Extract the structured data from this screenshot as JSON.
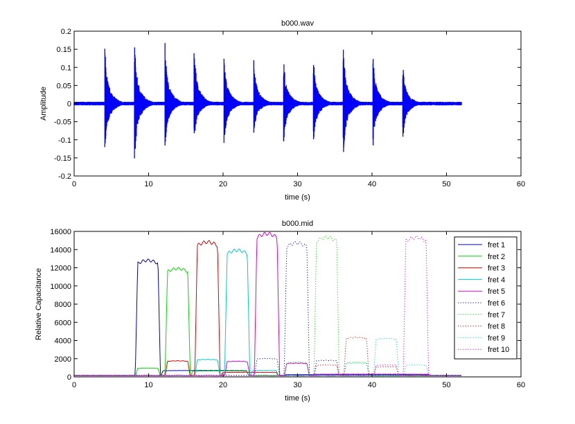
{
  "chart_data": [
    {
      "type": "line",
      "title": "b000.wav",
      "xlabel": "time (s)",
      "ylabel": "Amplitude",
      "xlim": [
        0,
        60
      ],
      "ylim": [
        -0.2,
        0.2
      ],
      "xticks": [
        "0",
        "10",
        "20",
        "30",
        "40",
        "50",
        "60"
      ],
      "yticks": [
        "-0.2",
        "-0.15",
        "-0.1",
        "-0.05",
        "0",
        "0.05",
        "0.1",
        "0.15",
        "0.2"
      ],
      "color": "#0000ff",
      "signal_end": 52,
      "noise_floor": 0.005,
      "onsets": [
        {
          "t": 4.1,
          "max": 0.18,
          "min": -0.16
        },
        {
          "t": 8.1,
          "max": 0.19,
          "min": -0.183
        },
        {
          "t": 12.2,
          "max": 0.18,
          "min": -0.14
        },
        {
          "t": 16.1,
          "max": 0.18,
          "min": -0.12
        },
        {
          "t": 20.1,
          "max": 0.16,
          "min": -0.14
        },
        {
          "t": 24.1,
          "max": 0.145,
          "min": -0.1
        },
        {
          "t": 28.1,
          "max": 0.145,
          "min": -0.135
        },
        {
          "t": 32.1,
          "max": 0.15,
          "min": -0.14
        },
        {
          "t": 36.1,
          "max": 0.19,
          "min": -0.18
        },
        {
          "t": 40.1,
          "max": 0.16,
          "min": -0.14
        },
        {
          "t": 44.1,
          "max": 0.13,
          "min": -0.12
        }
      ]
    },
    {
      "type": "line",
      "title": "b000.mid",
      "xlabel": "time (s)",
      "ylabel": "Relative Capacitance",
      "xlim": [
        0,
        60
      ],
      "ylim": [
        0,
        16000
      ],
      "xticks": [
        "0",
        "10",
        "20",
        "30",
        "40",
        "50",
        "60"
      ],
      "yticks": [
        "0",
        "2000",
        "4000",
        "6000",
        "8000",
        "10000",
        "12000",
        "14000",
        "16000"
      ],
      "legend": "top-right",
      "x_end": 52,
      "baseline": 150,
      "series": [
        {
          "name": "fret 1",
          "color": "#0000b0",
          "style": "solid",
          "main": [
            8.2,
            11.6,
            12700
          ],
          "extra": [
            [
              11.6,
              23.5,
              700
            ],
            [
              28,
              48,
              250
            ]
          ]
        },
        {
          "name": "fret 2",
          "color": "#00dd00",
          "style": "solid",
          "main": [
            12.2,
            15.6,
            11800
          ],
          "extra": [
            [
              8.2,
              11.6,
              950
            ],
            [
              15.6,
              23.5,
              650
            ]
          ]
        },
        {
          "name": "fret 3",
          "color": "#dd0000",
          "style": "solid",
          "main": [
            16.2,
            19.6,
            14700
          ],
          "extra": [
            [
              12.2,
              15.6,
              1750
            ],
            [
              19.6,
              27.5,
              500
            ]
          ]
        },
        {
          "name": "fret 4",
          "color": "#00cccc",
          "style": "solid",
          "main": [
            20.2,
            23.6,
            13800
          ],
          "extra": [
            [
              16.2,
              19.6,
              1900
            ],
            [
              23.6,
              27.5,
              700
            ]
          ]
        },
        {
          "name": "fret 5",
          "color": "#dd00dd",
          "style": "solid",
          "main": [
            24.2,
            27.6,
            15600
          ],
          "extra": [
            [
              20.2,
              23.6,
              1700
            ],
            [
              28.2,
              31.6,
              1500
            ],
            [
              32,
              48,
              300
            ]
          ]
        },
        {
          "name": "fret 6",
          "color": "#0000b0",
          "style": "dotted",
          "main": [
            28.2,
            31.6,
            14600
          ],
          "extra": [
            [
              24.2,
              27.6,
              2000
            ],
            [
              32.2,
              35.6,
              1800
            ]
          ]
        },
        {
          "name": "fret 7",
          "color": "#00dd00",
          "style": "dotted",
          "main": [
            32.2,
            35.6,
            15200
          ],
          "extra": [
            [
              28.2,
              31.6,
              1600
            ],
            [
              36.2,
              39.6,
              1600
            ]
          ]
        },
        {
          "name": "fret 8",
          "color": "#dd0000",
          "style": "dotted",
          "main": [
            36.2,
            39.6,
            4300
          ],
          "extra": [
            [
              32.2,
              35.6,
              1300
            ],
            [
              40.2,
              43.6,
              1100
            ]
          ]
        },
        {
          "name": "fret 9",
          "color": "#00cccc",
          "style": "dotted",
          "main": [
            40.2,
            43.6,
            4200
          ],
          "extra": [
            [
              36.2,
              39.6,
              1500
            ],
            [
              44.2,
              47.6,
              1300
            ]
          ]
        },
        {
          "name": "fret 10",
          "color": "#dd00dd",
          "style": "dotted",
          "main": [
            44.2,
            47.6,
            15200
          ],
          "extra": [
            [
              40.2,
              43.6,
              1300
            ]
          ]
        }
      ]
    }
  ]
}
